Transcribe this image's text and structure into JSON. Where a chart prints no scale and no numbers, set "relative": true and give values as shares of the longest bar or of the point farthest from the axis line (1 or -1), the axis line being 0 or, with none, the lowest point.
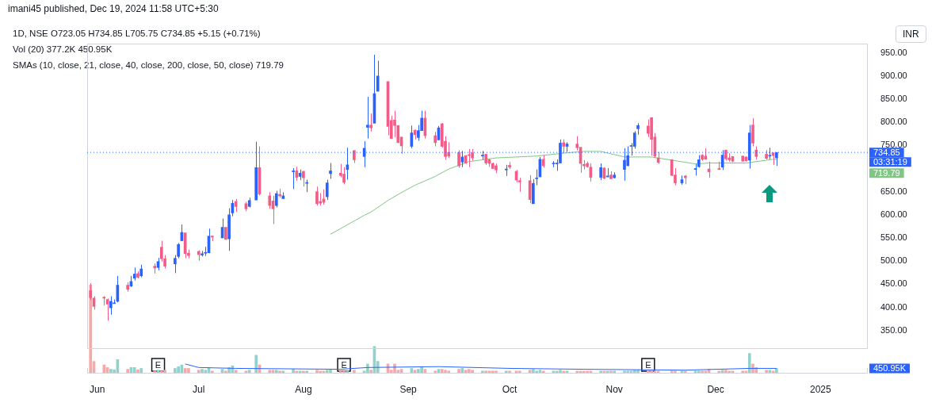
{
  "chart_data": [
    {
      "type": "candlestick",
      "title": "1D, NSE",
      "ylabel": "INR",
      "x": [
        "2024-05-30",
        "2024-05-31",
        "2024-06-03",
        "2024-06-04",
        "2024-06-05",
        "2024-06-06",
        "2024-06-07",
        "2024-06-10",
        "2024-06-11",
        "2024-06-12",
        "2024-06-13",
        "2024-06-14",
        "2024-06-18",
        "2024-06-19",
        "2024-06-20",
        "2024-06-21",
        "2024-06-24",
        "2024-06-25",
        "2024-06-26",
        "2024-06-27",
        "2024-06-28",
        "2024-07-01",
        "2024-07-02",
        "2024-07-03",
        "2024-07-04",
        "2024-07-05",
        "2024-07-08",
        "2024-07-09",
        "2024-07-10",
        "2024-07-11",
        "2024-07-12",
        "2024-07-15",
        "2024-07-16",
        "2024-07-18",
        "2024-07-19",
        "2024-07-22",
        "2024-07-23",
        "2024-07-24",
        "2024-07-25",
        "2024-07-26",
        "2024-07-29",
        "2024-07-30",
        "2024-07-31",
        "2024-08-01",
        "2024-08-02",
        "2024-08-05",
        "2024-08-06",
        "2024-08-07",
        "2024-08-08",
        "2024-08-09",
        "2024-08-12",
        "2024-08-13",
        "2024-08-14",
        "2024-08-16",
        "2024-08-19",
        "2024-08-20",
        "2024-08-21",
        "2024-08-22",
        "2024-08-23",
        "2024-08-26",
        "2024-08-27",
        "2024-08-28",
        "2024-08-29",
        "2024-08-30",
        "2024-09-02",
        "2024-09-03",
        "2024-09-04",
        "2024-09-05",
        "2024-09-06",
        "2024-09-09",
        "2024-09-10",
        "2024-09-11",
        "2024-09-12",
        "2024-09-13",
        "2024-09-16",
        "2024-09-17",
        "2024-09-18",
        "2024-09-19",
        "2024-09-20",
        "2024-09-23",
        "2024-09-24",
        "2024-09-25",
        "2024-09-26",
        "2024-09-27",
        "2024-09-30",
        "2024-10-01",
        "2024-10-03",
        "2024-10-04",
        "2024-10-07",
        "2024-10-08",
        "2024-10-09",
        "2024-10-10",
        "2024-10-11",
        "2024-10-14",
        "2024-10-15",
        "2024-10-16",
        "2024-10-17",
        "2024-10-18",
        "2024-10-21",
        "2024-10-22",
        "2024-10-23",
        "2024-10-24",
        "2024-10-25",
        "2024-10-28",
        "2024-10-29",
        "2024-10-30",
        "2024-10-31",
        "2024-11-01",
        "2024-11-04",
        "2024-11-05",
        "2024-11-06",
        "2024-11-07",
        "2024-11-08",
        "2024-11-11",
        "2024-11-12",
        "2024-11-13",
        "2024-11-14",
        "2024-11-18",
        "2024-11-19",
        "2024-11-21",
        "2024-11-22",
        "2024-11-25",
        "2024-11-26",
        "2024-11-27",
        "2024-11-28",
        "2024-11-29",
        "2024-12-02",
        "2024-12-03",
        "2024-12-04",
        "2024-12-05",
        "2024-12-06",
        "2024-12-09",
        "2024-12-10",
        "2024-12-11",
        "2024-12-12",
        "2024-12-13",
        "2024-12-16",
        "2024-12-17",
        "2024-12-18",
        "2024-12-19"
      ],
      "ohlc": [
        [
          436,
          452,
          416,
          421
        ],
        [
          420,
          424,
          395,
          402
        ],
        [
          422,
          424,
          404,
          420
        ],
        [
          417,
          419,
          371,
          407
        ],
        [
          399,
          424,
          384,
          413
        ],
        [
          408,
          417,
          408,
          409
        ],
        [
          413,
          468,
          411,
          448
        ],
        [
          448,
          454,
          434,
          439
        ],
        [
          446,
          468,
          444,
          456
        ],
        [
          463,
          486,
          458,
          472
        ],
        [
          473,
          478,
          463,
          465
        ],
        [
          468,
          492,
          465,
          483
        ],
        [
          489,
          495,
          473,
          485
        ],
        [
          486,
          507,
          480,
          499
        ],
        [
          530,
          544,
          499,
          505
        ],
        [
          505,
          513,
          484,
          489
        ],
        [
          494,
          513,
          474,
          506
        ],
        [
          510,
          539,
          506,
          536
        ],
        [
          544,
          579,
          543,
          562
        ],
        [
          561,
          561,
          506,
          516
        ],
        [
          517,
          525,
          506,
          512
        ],
        [
          521,
          523,
          501,
          514
        ],
        [
          513,
          522,
          510,
          516
        ],
        [
          517,
          531,
          511,
          518
        ],
        [
          518,
          570,
          517,
          554
        ],
        [
          554,
          555,
          543,
          552
        ],
        [
          550,
          592,
          550,
          573
        ],
        [
          573,
          573,
          546,
          547
        ],
        [
          548,
          614,
          522,
          600
        ],
        [
          604,
          632,
          597,
          625
        ],
        [
          629,
          634,
          606,
          618
        ],
        [
          624,
          628,
          608,
          613
        ],
        [
          618,
          637,
          616,
          631
        ],
        [
          632,
          758,
          632,
          702
        ],
        [
          702,
          748,
          642,
          645
        ],
        [
          641,
          649,
          613,
          620
        ],
        [
          630,
          641,
          580,
          613
        ],
        [
          620,
          652,
          616,
          646
        ],
        [
          644,
          656,
          637,
          641
        ],
        [
          635,
          649,
          635,
          641
        ],
        [
          693,
          701,
          656,
          695
        ],
        [
          695,
          704,
          674,
          681
        ],
        [
          683,
          698,
          675,
          690
        ],
        [
          694,
          695,
          661,
          680
        ],
        [
          668,
          676,
          649,
          670
        ],
        [
          650,
          661,
          620,
          624
        ],
        [
          629,
          647,
          620,
          625
        ],
        [
          634,
          655,
          622,
          627
        ],
        [
          639,
          676,
          632,
          669
        ],
        [
          689,
          712,
          678,
          695
        ],
        [
          690,
          710,
          681,
          685
        ],
        [
          688,
          703,
          666,
          670
        ],
        [
          698,
          745,
          676,
          708
        ],
        [
          739,
          739,
          712,
          719
        ],
        [
          726,
          759,
          703,
          744
        ],
        [
          789,
          855,
          765,
          794
        ],
        [
          794,
          819,
          780,
          788
        ],
        [
          798,
          946,
          798,
          862
        ],
        [
          867,
          933,
          867,
          900
        ],
        [
          888,
          888,
          772,
          791
        ],
        [
          804,
          814,
          764,
          765
        ],
        [
          805,
          825,
          768,
          793
        ],
        [
          793,
          793,
          755,
          756
        ],
        [
          768,
          768,
          732,
          749
        ],
        [
          748,
          793,
          744,
          777
        ],
        [
          783,
          784,
          763,
          773
        ],
        [
          767,
          794,
          760,
          782
        ],
        [
          782,
          825,
          782,
          809
        ],
        [
          809,
          825,
          765,
          771
        ],
        [
          771,
          779,
          748,
          756
        ],
        [
          762,
          792,
          761,
          788
        ],
        [
          797,
          798,
          745,
          748
        ],
        [
          759,
          770,
          719,
          726
        ],
        [
          735,
          757,
          723,
          727
        ],
        [
          735,
          740,
          702,
          706
        ],
        [
          714,
          738,
          703,
          725
        ],
        [
          728,
          729,
          710,
          712
        ],
        [
          730,
          742,
          703,
          728
        ],
        [
          734,
          742,
          717,
          723
        ],
        [
          727,
          738,
          719,
          729
        ],
        [
          731,
          731,
          708,
          712
        ],
        [
          719,
          721,
          704,
          711
        ],
        [
          711,
          713,
          699,
          700
        ],
        [
          706,
          711,
          690,
          697
        ],
        [
          697,
          708,
          684,
          699
        ],
        [
          707,
          714,
          699,
          703
        ],
        [
          694,
          697,
          670,
          675
        ],
        [
          674,
          680,
          650,
          671
        ],
        [
          674,
          686,
          625,
          633
        ],
        [
          624,
          677,
          624,
          668
        ],
        [
          678,
          698,
          664,
          679
        ],
        [
          682,
          725,
          682,
          720
        ],
        [
          720,
          729,
          702,
          706
        ],
        [
          710,
          716,
          703,
          711
        ],
        [
          710,
          720,
          695,
          712
        ],
        [
          712,
          763,
          712,
          755
        ],
        [
          756,
          763,
          734,
          748
        ],
        [
          748,
          757,
          736,
          753
        ],
        [
          753,
          770,
          739,
          745
        ],
        [
          746,
          746,
          691,
          711
        ],
        [
          709,
          718,
          698,
          706
        ],
        [
          711,
          715,
          702,
          704
        ],
        [
          703,
          711,
          672,
          681
        ],
        [
          681,
          711,
          675,
          702
        ],
        [
          701,
          703,
          677,
          679
        ],
        [
          682,
          701,
          681,
          684
        ],
        [
          686,
          694,
          677,
          678
        ],
        [
          680,
          692,
          679,
          686
        ],
        [
          698,
          744,
          674,
          718
        ],
        [
          706,
          748,
          706,
          728
        ],
        [
          748,
          755,
          728,
          749
        ],
        [
          748,
          781,
          743,
          777
        ],
        [
          786,
          798,
          773,
          793
        ],
        [
          792,
          806,
          768,
          776
        ],
        [
          810,
          810,
          728,
          763
        ],
        [
          768,
          777,
          723,
          727
        ],
        [
          723,
          736,
          710,
          713
        ],
        [
          719,
          720,
          684,
          685
        ],
        [
          686,
          701,
          664,
          669
        ],
        [
          669,
          685,
          665,
          676
        ],
        [
          684,
          686,
          666,
          680
        ],
        [
          698,
          710,
          685,
          700
        ],
        [
          704,
          729,
          702,
          719
        ],
        [
          729,
          731,
          717,
          720
        ],
        [
          727,
          744,
          720,
          720
        ],
        [
          699,
          715,
          680,
          693
        ],
        [
          700,
          715,
          697,
          698
        ],
        [
          703,
          740,
          697,
          729
        ],
        [
          740,
          740,
          717,
          721
        ],
        [
          723,
          733,
          715,
          719
        ],
        [
          726,
          726,
          714,
          716
        ],
        [
          727,
          727,
          715,
          716
        ],
        [
          725,
          726,
          715,
          717
        ],
        [
          718,
          794,
          700,
          777
        ],
        [
          794,
          809,
          748,
          755
        ],
        [
          740,
          748,
          720,
          726
        ],
        [
          731,
          740,
          720,
          722
        ],
        [
          727,
          745,
          720,
          728
        ],
        [
          734,
          734,
          708,
          728
        ],
        [
          723.05,
          734.85,
          705.75,
          734.85
        ]
      ],
      "colors": [
        "#f25c86",
        "#f25c86",
        "#f25c86",
        "#f25c86",
        "#2962ff",
        "#2962ff",
        "#2962ff",
        "#f25c86",
        "#2962ff",
        "#2962ff",
        "#f25c86",
        "#2962ff",
        "#f25c86",
        "#2962ff",
        "#f25c86",
        "#f25c86",
        "#2962ff",
        "#2962ff",
        "#2962ff",
        "#f25c86",
        "#f25c86",
        "#f25c86",
        "#2962ff",
        "#2962ff",
        "#2962ff",
        "#f25c86",
        "#2962ff",
        "#f25c86",
        "#2962ff",
        "#2962ff",
        "#f25c86",
        "#f25c86",
        "#2962ff",
        "#2962ff",
        "#f25c86",
        "#f25c86",
        "#f25c86",
        "#2962ff",
        "#f25c86",
        "#2962ff",
        "#2962ff",
        "#f25c86",
        "#2962ff",
        "#f25c86",
        "#2962ff",
        "#f25c86",
        "#f25c86",
        "#f25c86",
        "#2962ff",
        "#2962ff",
        "#f25c86",
        "#f25c86",
        "#2962ff",
        "#f25c86",
        "#2962ff",
        "#2962ff",
        "#f25c86",
        "#2962ff",
        "#2962ff",
        "#f25c86",
        "#f25c86",
        "#f25c86",
        "#f25c86",
        "#f25c86",
        "#2962ff",
        "#f25c86",
        "#2962ff",
        "#2962ff",
        "#f25c86",
        "#f25c86",
        "#2962ff",
        "#f25c86",
        "#f25c86",
        "#f25c86",
        "#f25c86",
        "#2962ff",
        "#f25c86",
        "#f25c86",
        "#f25c86",
        "#2962ff",
        "#f25c86",
        "#f25c86",
        "#f25c86",
        "#f25c86",
        "#2962ff",
        "#f25c86",
        "#f25c86",
        "#f25c86",
        "#f25c86",
        "#2962ff",
        "#2962ff",
        "#2962ff",
        "#f25c86",
        "#2962ff",
        "#2962ff",
        "#2962ff",
        "#f25c86",
        "#2962ff",
        "#f25c86",
        "#f25c86",
        "#f25c86",
        "#f25c86",
        "#f25c86",
        "#2962ff",
        "#f25c86",
        "#2962ff",
        "#f25c86",
        "#2962ff",
        "#2962ff",
        "#2962ff",
        "#2962ff",
        "#2962ff",
        "#2962ff",
        "#f25c86",
        "#f25c86",
        "#f25c86",
        "#f25c86",
        "#f25c86",
        "#f25c86",
        "#2962ff",
        "#f25c86",
        "#2962ff",
        "#2962ff",
        "#f25c86",
        "#f25c86",
        "#f25c86",
        "#f25c86",
        "#2962ff",
        "#f25c86",
        "#f25c86",
        "#f25c86",
        "#f25c86",
        "#f25c86",
        "#2962ff",
        "#f25c86",
        "#f25c86",
        "#f25c86",
        "#2962ff",
        "#f25c86",
        "#2962ff"
      ],
      "series": [
        {
          "type": "line",
          "color": "#81c784",
          "x": [
            "2024-08-09",
            "2024-08-19",
            "2024-08-21",
            "2024-08-26",
            "2024-08-29",
            "2024-09-03",
            "2024-09-09",
            "2024-09-13",
            "2024-09-19",
            "2024-09-27",
            "2024-10-09",
            "2024-10-18",
            "2024-10-23",
            "2024-10-28",
            "2024-11-04",
            "2024-11-12",
            "2024-11-25",
            "2024-11-29",
            "2024-12-10",
            "2024-12-18",
            "2024-12-19"
          ],
          "values": [
            558,
            599,
            606,
            631,
            644,
            664,
            683,
            699,
            715,
            723,
            727,
            734,
            737,
            737,
            725,
            725,
            710,
            712,
            712,
            720,
            720
          ]
        }
      ],
      "xlim": [
        "2024-05-29",
        "2025-01-15"
      ],
      "ylim": [
        310,
        970
      ],
      "yticks": [
        {
          "value": 350,
          "label": "350.00"
        },
        {
          "value": 400,
          "label": "400.00"
        },
        {
          "value": 450,
          "label": "450.00"
        },
        {
          "value": 500,
          "label": "500.00"
        },
        {
          "value": 550,
          "label": "550.00"
        },
        {
          "value": 600,
          "label": "600.00"
        },
        {
          "value": 650,
          "label": "650.00"
        },
        {
          "value": 750,
          "label": "750.00"
        },
        {
          "value": 800,
          "label": "800.00"
        },
        {
          "value": 850,
          "label": "850.00"
        },
        {
          "value": 900,
          "label": "900.00"
        },
        {
          "value": 950,
          "label": "950.00"
        }
      ],
      "tick_labels": "y",
      "ref_lines": [
        {
          "axis": "y",
          "value": 734.85,
          "label": "734.85",
          "color": "#2962ff",
          "line_style": "dotted"
        }
      ],
      "annotations": [
        "imani45 published, Dec 19, 2024 11:58 UTC+5:30",
        "O723.05 H734.85 L705.75 C734.85 +5.15 (+0.71%)",
        "Vol (20) 377.2K 450.95K",
        "SMAs (10, close, 21, close, 40, close, 200, close, 50, close) 719.79",
        "03:31:19",
        "719.79"
      ]
    },
    {
      "type": "bar",
      "relative": true,
      "x": [
        "2024-05-30",
        "2024-05-31",
        "2024-06-03",
        "2024-06-04",
        "2024-06-05",
        "2024-06-06",
        "2024-06-07",
        "2024-06-10",
        "2024-06-11",
        "2024-06-12",
        "2024-06-13",
        "2024-06-14",
        "2024-06-18",
        "2024-06-19",
        "2024-06-20",
        "2024-06-21",
        "2024-06-24",
        "2024-06-25",
        "2024-06-26",
        "2024-06-27",
        "2024-06-28",
        "2024-07-01",
        "2024-07-02",
        "2024-07-03",
        "2024-07-04",
        "2024-07-05",
        "2024-07-08",
        "2024-07-09",
        "2024-07-10",
        "2024-07-11",
        "2024-07-12",
        "2024-07-15",
        "2024-07-16",
        "2024-07-18",
        "2024-07-19",
        "2024-07-22",
        "2024-07-23",
        "2024-07-24",
        "2024-07-25",
        "2024-07-26",
        "2024-07-29",
        "2024-07-30",
        "2024-07-31",
        "2024-08-01",
        "2024-08-02",
        "2024-08-05",
        "2024-08-06",
        "2024-08-07",
        "2024-08-08",
        "2024-08-09",
        "2024-08-12",
        "2024-08-13",
        "2024-08-14",
        "2024-08-16",
        "2024-08-19",
        "2024-08-20",
        "2024-08-21",
        "2024-08-22",
        "2024-08-23",
        "2024-08-26",
        "2024-08-27",
        "2024-08-28",
        "2024-08-29",
        "2024-08-30",
        "2024-09-02",
        "2024-09-03",
        "2024-09-04",
        "2024-09-05",
        "2024-09-06",
        "2024-09-09",
        "2024-09-10",
        "2024-09-11",
        "2024-09-12",
        "2024-09-13",
        "2024-09-16",
        "2024-09-17",
        "2024-09-18",
        "2024-09-19",
        "2024-09-20",
        "2024-09-23",
        "2024-09-24",
        "2024-09-25",
        "2024-09-26",
        "2024-09-27",
        "2024-09-30",
        "2024-10-01",
        "2024-10-03",
        "2024-10-04",
        "2024-10-07",
        "2024-10-08",
        "2024-10-09",
        "2024-10-10",
        "2024-10-11",
        "2024-10-14",
        "2024-10-15",
        "2024-10-16",
        "2024-10-17",
        "2024-10-18",
        "2024-10-21",
        "2024-10-22",
        "2024-10-23",
        "2024-10-24",
        "2024-10-25",
        "2024-10-28",
        "2024-10-29",
        "2024-10-30",
        "2024-10-31",
        "2024-11-01",
        "2024-11-04",
        "2024-11-05",
        "2024-11-06",
        "2024-11-07",
        "2024-11-08",
        "2024-11-11",
        "2024-11-12",
        "2024-11-13",
        "2024-11-14",
        "2024-11-18",
        "2024-11-19",
        "2024-11-21",
        "2024-11-22",
        "2024-11-25",
        "2024-11-26",
        "2024-11-27",
        "2024-11-28",
        "2024-11-29",
        "2024-12-02",
        "2024-12-03",
        "2024-12-04",
        "2024-12-05",
        "2024-12-06",
        "2024-12-09",
        "2024-12-10",
        "2024-12-11",
        "2024-12-12",
        "2024-12-13",
        "2024-12-16",
        "2024-12-17",
        "2024-12-18",
        "2024-12-19"
      ],
      "series": [
        {
          "type": "bar",
          "values": [
            1,
            0.13,
            0.09,
            0.06,
            0.04,
            0.035,
            0.15,
            0.04,
            0.06,
            0.06,
            0.035,
            0.05,
            0.02,
            0.03,
            0.02,
            0.03,
            0.05,
            0.07,
            0.09,
            0.05,
            0.05,
            0.03,
            0.04,
            0.03,
            0.06,
            0.02,
            0.04,
            0.02,
            0.06,
            0.08,
            0.03,
            0.02,
            0.03,
            0.2,
            0.09,
            0.03,
            0.03,
            0.03,
            0.02,
            0.02,
            0.04,
            0.02,
            0.02,
            0.02,
            0.02,
            0.03,
            0.02,
            0.02,
            0.03,
            0.04,
            0.02,
            0.02,
            0.02,
            0.03,
            0.02,
            0.1,
            0.03,
            0.3,
            0.13,
            0.1,
            0.03,
            0.1,
            0.03,
            0.04,
            0.05,
            0.03,
            0.04,
            0.07,
            0.04,
            0.02,
            0.04,
            0.04,
            0.03,
            0.02,
            0.04,
            0.05,
            0.03,
            0.04,
            0.03,
            0.02,
            0.02,
            0.02,
            0.02,
            0.02,
            0.02,
            0.02,
            0.02,
            0.02,
            0.03,
            0.04,
            0.02,
            0.03,
            0.02,
            0.02,
            0.02,
            0.03,
            0.02,
            0.02,
            0.02,
            0.02,
            0.02,
            0.02,
            0.02,
            0.02,
            0.02,
            0.02,
            0.02,
            0.02,
            0.02,
            0.02,
            0.02,
            0.03,
            0.03,
            0.03,
            0.03,
            0.02,
            0.02,
            0.02,
            0.02,
            0.02,
            0.02,
            0.02,
            0.02,
            0.02,
            0.02,
            0.04,
            0.02,
            0.03,
            0.03,
            0.02,
            0.02,
            0.02,
            0.02,
            0.22,
            0.1,
            0.06,
            0.03,
            0.03,
            0.02,
            0.05
          ],
          "colors": [
            "#f7a9a7",
            "#f7a9a7",
            "#f7a9a7",
            "#f7a9a7",
            "#93d2cc",
            "#93d2cc",
            "#93d2cc",
            "#f7a9a7",
            "#93d2cc",
            "#93d2cc",
            "#f7a9a7",
            "#93d2cc",
            "#f7a9a7",
            "#93d2cc",
            "#f7a9a7",
            "#f7a9a7",
            "#93d2cc",
            "#93d2cc",
            "#93d2cc",
            "#f7a9a7",
            "#f7a9a7",
            "#f7a9a7",
            "#93d2cc",
            "#93d2cc",
            "#93d2cc",
            "#f7a9a7",
            "#93d2cc",
            "#f7a9a7",
            "#93d2cc",
            "#93d2cc",
            "#f7a9a7",
            "#f7a9a7",
            "#93d2cc",
            "#93d2cc",
            "#f7a9a7",
            "#f7a9a7",
            "#f7a9a7",
            "#93d2cc",
            "#f7a9a7",
            "#93d2cc",
            "#93d2cc",
            "#f7a9a7",
            "#93d2cc",
            "#f7a9a7",
            "#93d2cc",
            "#f7a9a7",
            "#f7a9a7",
            "#f7a9a7",
            "#93d2cc",
            "#93d2cc",
            "#f7a9a7",
            "#f7a9a7",
            "#93d2cc",
            "#f7a9a7",
            "#93d2cc",
            "#93d2cc",
            "#f7a9a7",
            "#93d2cc",
            "#93d2cc",
            "#f7a9a7",
            "#f7a9a7",
            "#f7a9a7",
            "#f7a9a7",
            "#f7a9a7",
            "#93d2cc",
            "#f7a9a7",
            "#93d2cc",
            "#93d2cc",
            "#f7a9a7",
            "#f7a9a7",
            "#93d2cc",
            "#f7a9a7",
            "#f7a9a7",
            "#f7a9a7",
            "#f7a9a7",
            "#93d2cc",
            "#f7a9a7",
            "#f7a9a7",
            "#f7a9a7",
            "#93d2cc",
            "#f7a9a7",
            "#f7a9a7",
            "#f7a9a7",
            "#f7a9a7",
            "#93d2cc",
            "#f7a9a7",
            "#f7a9a7",
            "#f7a9a7",
            "#f7a9a7",
            "#93d2cc",
            "#93d2cc",
            "#93d2cc",
            "#f7a9a7",
            "#93d2cc",
            "#93d2cc",
            "#93d2cc",
            "#f7a9a7",
            "#93d2cc",
            "#f7a9a7",
            "#f7a9a7",
            "#f7a9a7",
            "#f7a9a7",
            "#f7a9a7",
            "#93d2cc",
            "#f7a9a7",
            "#93d2cc",
            "#f7a9a7",
            "#93d2cc",
            "#93d2cc",
            "#93d2cc",
            "#93d2cc",
            "#93d2cc",
            "#93d2cc",
            "#f7a9a7",
            "#f7a9a7",
            "#f7a9a7",
            "#f7a9a7",
            "#f7a9a7",
            "#f7a9a7",
            "#93d2cc",
            "#f7a9a7",
            "#93d2cc",
            "#93d2cc",
            "#f7a9a7",
            "#f7a9a7",
            "#f7a9a7",
            "#f7a9a7",
            "#93d2cc",
            "#f7a9a7",
            "#f7a9a7",
            "#f7a9a7",
            "#f7a9a7",
            "#f7a9a7",
            "#93d2cc",
            "#f7a9a7",
            "#f7a9a7",
            "#f7a9a7",
            "#93d2cc",
            "#f7a9a7",
            "#93d2cc"
          ]
        },
        {
          "type": "line",
          "color": "#2962ff",
          "x": [
            "2024-06-27",
            "2024-07-01",
            "2024-07-12",
            "2024-08-12",
            "2024-08-20",
            "2024-09-10",
            "2024-10-01",
            "2024-10-23",
            "2024-11-22",
            "2024-12-11",
            "2024-12-19"
          ],
          "values": [
            0.1,
            0.06,
            0.05,
            0.04,
            0.06,
            0.07,
            0.05,
            0.04,
            0.03,
            0.05,
            0.05
          ]
        }
      ],
      "xlim": [
        "2024-05-29",
        "2025-01-15"
      ],
      "xticks": [
        {
          "value": "2024-06-01",
          "label": "Jun"
        },
        {
          "value": "2024-07-01",
          "label": "Jul"
        },
        {
          "value": "2024-08-01",
          "label": "Aug"
        },
        {
          "value": "2024-09-01",
          "label": "Sep"
        },
        {
          "value": "2024-10-01",
          "label": "Oct"
        },
        {
          "value": "2024-11-01",
          "label": "Nov"
        },
        {
          "value": "2024-12-01",
          "label": "Dec"
        },
        {
          "value": "2025",
          "label": "2025"
        }
      ],
      "tick_labels": "x",
      "annotations": [
        {
          "text": "E",
          "x": "2024-06-19"
        },
        {
          "text": "E",
          "x": "2024-08-13"
        },
        {
          "text": "E",
          "x": "2024-11-11"
        },
        "450.95K"
      ]
    }
  ]
}
